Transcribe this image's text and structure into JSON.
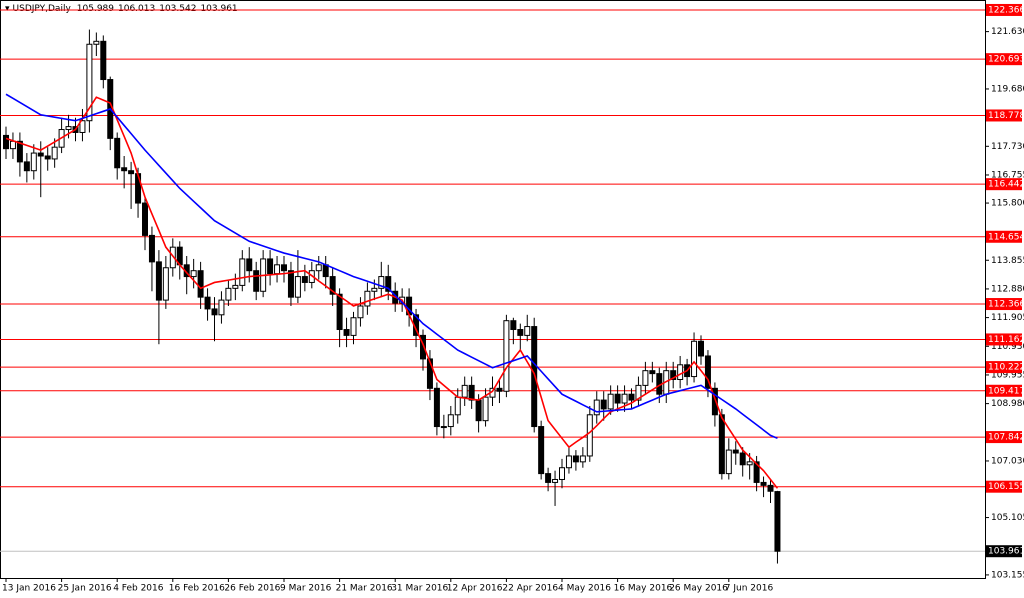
{
  "chart_data": {
    "type": "candlestick",
    "title": "USDJPY,Daily",
    "categories": [
      "13 Jan 2016",
      null,
      null,
      null,
      null,
      null,
      null,
      null,
      "25 Jan 2016",
      null,
      null,
      null,
      null,
      null,
      null,
      null,
      "4 Feb 2016",
      null,
      null,
      null,
      null,
      null,
      null,
      null,
      "16 Feb 2016",
      null,
      null,
      null,
      null,
      null,
      null,
      null,
      "26 Feb 2016",
      null,
      null,
      null,
      null,
      null,
      null,
      null,
      "9 Mar 2016",
      null,
      null,
      null,
      null,
      null,
      null,
      null,
      "21 Mar 2016",
      null,
      null,
      null,
      null,
      null,
      null,
      null,
      "31 Mar 2016",
      null,
      null,
      null,
      null,
      null,
      null,
      null,
      "12 Apr 2016",
      null,
      null,
      null,
      null,
      null,
      null,
      null,
      "22 Apr 2016",
      null,
      null,
      null,
      null,
      null,
      null,
      null,
      "4 May 2016",
      null,
      null,
      null,
      null,
      null,
      null,
      null,
      "16 May 2016",
      null,
      null,
      null,
      null,
      null,
      null,
      null,
      "26 May 2016",
      null,
      null,
      null,
      null,
      null,
      null,
      null,
      "7 Jun 2016",
      null,
      null,
      null,
      null,
      null,
      null,
      null
    ],
    "open": [
      118.1,
      117.65,
      117.9,
      117.2,
      116.9,
      117.5,
      117.4,
      117.3,
      117.7,
      118.3,
      118.4,
      118.2,
      118.6,
      121.2,
      121.3,
      120.0,
      118.0,
      117.0,
      116.9,
      116.8,
      115.8,
      114.7,
      113.8,
      112.5,
      113.6,
      114.3,
      113.7,
      113.3,
      113.5,
      112.6,
      112.2,
      112.0,
      112.5,
      112.9,
      113.0,
      113.9,
      113.5,
      112.8,
      113.9,
      113.4,
      113.7,
      113.5,
      112.6,
      113.3,
      113.1,
      113.5,
      113.7,
      113.3,
      112.7,
      111.5,
      111.3,
      111.9,
      112.3,
      112.8,
      112.9,
      113.3,
      112.8,
      112.4,
      112.6,
      112.0,
      111.3,
      110.5,
      109.5,
      108.2,
      108.2,
      108.6,
      109.2,
      109.6,
      109.1,
      108.4,
      109.2,
      109.5,
      109.4,
      111.8,
      111.5,
      111.3,
      111.6,
      108.2,
      106.6,
      106.3,
      106.4,
      106.8,
      107.2,
      107.0,
      107.2,
      108.6,
      109.1,
      108.8,
      109.3,
      109.0,
      109.3,
      109.1,
      109.6,
      110.1,
      110.0,
      109.3,
      110.1,
      109.8,
      110.3,
      109.9,
      111.1,
      110.6,
      109.5,
      108.6,
      106.6,
      107.4,
      107.3,
      106.9,
      107.0,
      106.3,
      106.2,
      105.989
    ],
    "high": [
      118.4,
      118.2,
      118.2,
      117.5,
      117.8,
      117.9,
      117.7,
      118.0,
      118.7,
      118.8,
      118.7,
      119.0,
      121.7,
      121.6,
      121.5,
      120.1,
      118.2,
      117.4,
      117.2,
      117.0,
      116.0,
      115.0,
      114.2,
      114.0,
      114.6,
      114.5,
      114.0,
      113.9,
      113.8,
      112.9,
      112.6,
      112.8,
      113.2,
      113.4,
      114.2,
      114.3,
      113.8,
      114.2,
      114.2,
      114.0,
      114.0,
      113.8,
      114.2,
      113.7,
      113.8,
      114.0,
      114.0,
      113.6,
      112.9,
      111.9,
      112.1,
      112.6,
      113.1,
      113.2,
      113.8,
      113.7,
      113.1,
      112.9,
      112.9,
      112.2,
      111.5,
      110.8,
      109.7,
      108.6,
      108.9,
      109.5,
      109.9,
      109.9,
      109.3,
      109.5,
      109.9,
      109.8,
      112.0,
      111.9,
      111.7,
      112.0,
      111.9,
      108.4,
      106.8,
      106.7,
      107.1,
      107.5,
      107.4,
      107.5,
      108.9,
      109.4,
      109.4,
      109.6,
      109.6,
      109.6,
      109.5,
      109.9,
      110.4,
      110.4,
      110.2,
      110.4,
      110.4,
      110.6,
      110.5,
      111.4,
      111.3,
      110.8,
      109.7,
      108.8,
      107.8,
      107.7,
      107.5,
      107.3,
      107.2,
      106.5,
      106.4,
      106.013
    ],
    "low": [
      117.3,
      117.3,
      116.7,
      116.5,
      116.6,
      116.0,
      116.9,
      117.0,
      117.5,
      118.0,
      117.9,
      117.9,
      118.2,
      120.8,
      119.7,
      117.6,
      116.6,
      116.3,
      115.6,
      115.3,
      114.2,
      112.8,
      111.0,
      112.2,
      113.3,
      113.2,
      112.7,
      112.9,
      112.2,
      111.8,
      111.1,
      111.7,
      112.3,
      112.5,
      112.8,
      113.1,
      112.5,
      112.6,
      113.0,
      113.1,
      113.1,
      112.3,
      112.4,
      112.8,
      112.9,
      113.2,
      112.9,
      112.3,
      110.9,
      110.9,
      111.0,
      111.6,
      112.0,
      112.5,
      112.6,
      112.5,
      112.1,
      112.1,
      111.6,
      110.9,
      110.1,
      109.1,
      107.9,
      107.8,
      107.9,
      108.3,
      108.9,
      108.8,
      108.0,
      108.2,
      108.9,
      109.0,
      109.2,
      111.0,
      110.8,
      111.1,
      108.0,
      106.4,
      106.0,
      105.5,
      106.1,
      106.6,
      106.7,
      106.8,
      107.0,
      108.3,
      108.4,
      108.6,
      108.7,
      108.7,
      108.8,
      108.9,
      109.3,
      109.7,
      109.0,
      109.0,
      109.5,
      109.5,
      109.6,
      109.7,
      110.3,
      109.2,
      108.2,
      106.4,
      106.4,
      106.9,
      106.5,
      106.4,
      106.0,
      105.8,
      105.6,
      103.542
    ],
    "close": [
      117.65,
      117.9,
      117.2,
      116.9,
      117.5,
      117.4,
      117.3,
      117.7,
      118.3,
      118.4,
      118.2,
      118.6,
      121.2,
      121.3,
      120.0,
      118.0,
      117.0,
      116.9,
      116.8,
      115.8,
      114.7,
      113.8,
      112.5,
      113.6,
      114.3,
      113.7,
      113.3,
      113.5,
      112.6,
      112.2,
      112.0,
      112.5,
      112.9,
      113.0,
      113.9,
      113.5,
      112.8,
      113.9,
      113.4,
      113.7,
      113.5,
      112.6,
      113.3,
      113.1,
      113.5,
      113.7,
      113.3,
      112.7,
      111.5,
      111.3,
      111.9,
      112.3,
      112.8,
      112.9,
      113.3,
      112.8,
      112.4,
      112.6,
      112.0,
      111.3,
      110.5,
      109.5,
      108.2,
      108.2,
      108.6,
      109.2,
      109.6,
      109.1,
      108.4,
      109.2,
      109.5,
      109.4,
      111.8,
      111.5,
      111.3,
      111.6,
      108.2,
      106.6,
      106.3,
      106.4,
      106.8,
      107.2,
      107.0,
      107.2,
      108.6,
      109.1,
      108.8,
      109.3,
      109.0,
      109.3,
      109.1,
      109.6,
      110.1,
      110.0,
      109.3,
      110.1,
      109.8,
      110.3,
      109.9,
      111.1,
      110.6,
      109.5,
      108.6,
      106.6,
      107.4,
      107.3,
      106.9,
      107.0,
      106.3,
      106.2,
      106.0,
      103.961
    ],
    "up_color": "#ffffff",
    "down_color": "#000000",
    "candle_outline": "#000000",
    "lines": [
      {
        "color": "#ff0000",
        "values": [
          118.0,
          117.92,
          117.84,
          117.76,
          117.68,
          117.6,
          117.74,
          117.88,
          118.02,
          118.16,
          118.3,
          118.67,
          119.03,
          119.4,
          119.3,
          119.2,
          118.63,
          118.07,
          117.5,
          116.75,
          116.0,
          115.43,
          114.87,
          114.3,
          114.0,
          113.7,
          113.43,
          113.17,
          112.9,
          113.0,
          113.1,
          113.14,
          113.18,
          113.22,
          113.26,
          113.3,
          113.32,
          113.34,
          113.36,
          113.38,
          113.4,
          113.43,
          113.47,
          113.5,
          113.33,
          113.15,
          112.98,
          112.8,
          112.63,
          112.47,
          112.3,
          112.38,
          112.46,
          112.54,
          112.62,
          112.7,
          112.6,
          112.5,
          112.0,
          111.5,
          111.0,
          110.4,
          109.8,
          109.6,
          109.4,
          109.2,
          109.17,
          109.13,
          109.1,
          109.25,
          109.4,
          109.8,
          110.2,
          110.5,
          110.8,
          110.4,
          110.0,
          109.2,
          108.4,
          108.1,
          107.8,
          107.5,
          107.67,
          107.83,
          108.0,
          108.23,
          108.47,
          108.7,
          108.8,
          108.9,
          109.0,
          109.15,
          109.3,
          109.45,
          109.6,
          109.73,
          109.85,
          109.98,
          110.1,
          110.4,
          110.1,
          109.8,
          109.15,
          108.5,
          108.13,
          107.77,
          107.4,
          107.17,
          106.93,
          106.7,
          106.4,
          106.1
        ]
      },
      {
        "color": "#0000ff",
        "values": [
          119.5,
          119.36,
          119.22,
          119.08,
          118.94,
          118.8,
          118.76,
          118.72,
          118.68,
          118.64,
          118.6,
          118.68,
          118.76,
          118.84,
          118.92,
          119.0,
          118.72,
          118.44,
          118.16,
          117.88,
          117.6,
          117.34,
          117.08,
          116.82,
          116.56,
          116.3,
          116.08,
          115.86,
          115.64,
          115.42,
          115.2,
          115.06,
          114.92,
          114.78,
          114.64,
          114.5,
          114.42,
          114.34,
          114.26,
          114.18,
          114.1,
          114.04,
          113.98,
          113.92,
          113.86,
          113.8,
          113.7,
          113.6,
          113.5,
          113.4,
          113.3,
          113.22,
          113.14,
          113.06,
          112.98,
          112.9,
          112.66,
          112.42,
          112.18,
          111.94,
          111.7,
          111.52,
          111.34,
          111.16,
          110.98,
          110.8,
          110.68,
          110.56,
          110.44,
          110.32,
          110.2,
          110.28,
          110.36,
          110.44,
          110.52,
          110.6,
          110.34,
          110.08,
          109.82,
          109.56,
          109.3,
          109.18,
          109.06,
          108.94,
          108.82,
          108.7,
          108.72,
          108.74,
          108.76,
          108.78,
          108.8,
          108.9,
          109.0,
          109.1,
          109.2,
          109.3,
          109.36,
          109.42,
          109.48,
          109.54,
          109.6,
          109.44,
          109.28,
          109.12,
          108.96,
          108.8,
          108.62,
          108.44,
          108.26,
          108.08,
          107.9,
          107.8
        ]
      }
    ],
    "levels": {
      "color": "#ff0000",
      "values": [
        122.366,
        120.693,
        118.778,
        116.442,
        114.654,
        112.366,
        111.162,
        110.222,
        109.417,
        107.842,
        106.155
      ]
    },
    "price_line_color": "#c0c0c0",
    "ylim": [
      103.05,
      122.705
    ],
    "yticks": [
      {
        "value": 121.63,
        "label": "121.630"
      },
      {
        "value": 119.68,
        "label": "119.680"
      },
      {
        "value": 117.73,
        "label": "117.730"
      },
      116.755,
      {
        "value": 115.8,
        "label": "115.800"
      },
      113.855,
      {
        "value": 112.88,
        "label": "112.880"
      },
      111.905,
      {
        "value": 110.93,
        "label": "110.930"
      },
      109.955,
      {
        "value": 108.98,
        "label": "108.980"
      },
      {
        "value": 107.03,
        "label": "107.030"
      },
      105.105,
      103.155
    ]
  }
}
